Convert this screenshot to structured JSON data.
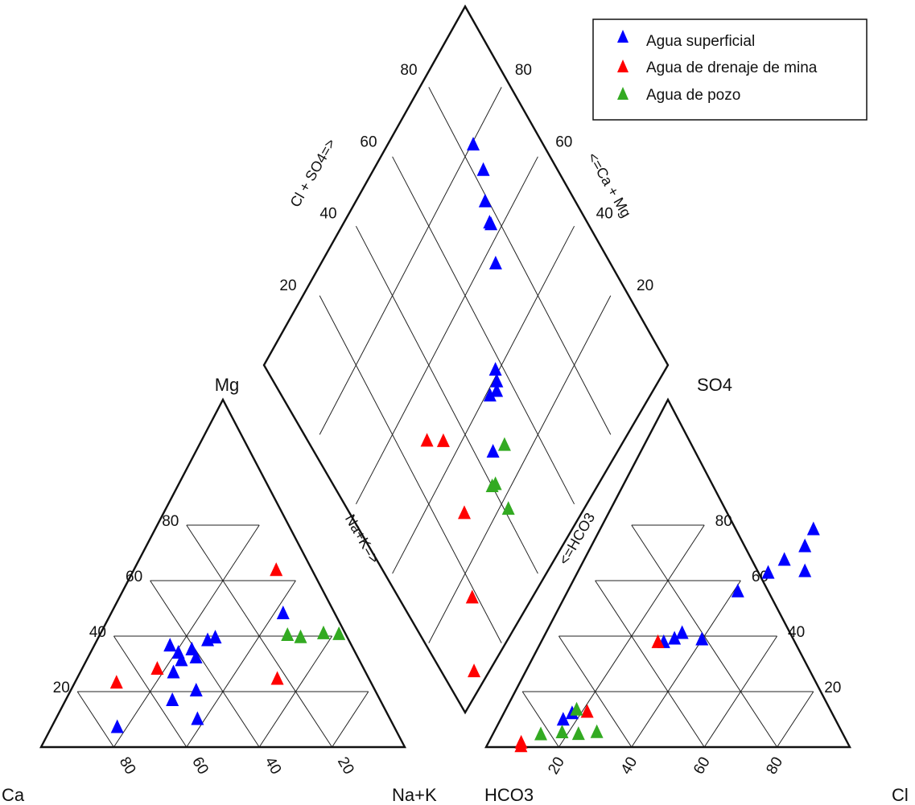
{
  "legend": {
    "items": [
      {
        "label": "Agua superficial",
        "color": "#0000ff"
      },
      {
        "label": "Agua de drenaje de mina",
        "color": "#ff0000"
      },
      {
        "label": "Agua de pozo",
        "color": "#33aa22"
      }
    ]
  },
  "labels": {
    "cation_apex_top": "Mg",
    "cation_left": "Ca",
    "cation_right": "Na+K",
    "cation_axis": "Na+K=>",
    "anion_apex_top": "SO4",
    "anion_left": "HCO3",
    "anion_right": "Cl",
    "anion_axis": "<=HCO3",
    "diamond_left_axis": "Cl + SO4=>",
    "diamond_right_axis": "<=Ca + Mg"
  },
  "ticks": {
    "cation_mg": [
      "20",
      "40",
      "60",
      "80"
    ],
    "cation_bottom": [
      "80",
      "60",
      "40",
      "20"
    ],
    "anion_so4": [
      "80",
      "60",
      "40",
      "20"
    ],
    "anion_bottom": [
      "20",
      "40",
      "60",
      "80"
    ],
    "diamond_left": [
      "80",
      "60",
      "40",
      "20"
    ],
    "diamond_right": [
      "80",
      "60",
      "40",
      "20"
    ]
  },
  "chart_data": {
    "type": "scatter",
    "series": [
      {
        "name": "Agua superficial",
        "cation_points": [
          [
            17.4,
            7.1
          ],
          [
            38.0,
            10.0
          ],
          [
            27.7,
            16.8
          ],
          [
            32.5,
            20.3
          ],
          [
            23.0,
            26.8
          ],
          [
            23.0,
            31.2
          ],
          [
            20.8,
            33.9
          ],
          [
            26.5,
            32.2
          ],
          [
            23.9,
            35.1
          ],
          [
            17.2,
            36.5
          ],
          [
            26.6,
            38.4
          ],
          [
            28.2,
            39.4
          ],
          [
            42.5,
            48.1
          ]
        ],
        "anion_points": [
          [
            16.3,
            9.8
          ],
          [
            17.6,
            12.1
          ],
          [
            30.0,
            37.7
          ],
          [
            32.3,
            39.0
          ],
          [
            33.4,
            41.0
          ],
          [
            40.0,
            38.7
          ],
          [
            41.2,
            56.0
          ],
          [
            46.2,
            62.7
          ],
          [
            48.3,
            67.4
          ],
          [
            56.0,
            63.3
          ],
          [
            51.5,
            72.3
          ],
          [
            50.8,
            78.4
          ]
        ],
        "diamond_points": [
          [
            30.0,
            43.8
          ],
          [
            37.7,
            53.3
          ],
          [
            39.0,
            54.7
          ],
          [
            41.0,
            56.0
          ],
          [
            38.7,
            51.0
          ],
          [
            56.0,
            71.1
          ],
          [
            62.7,
            75.5
          ],
          [
            67.4,
            77.3
          ],
          [
            63.3,
            75.4
          ],
          [
            72.3,
            81.3
          ],
          [
            78.4,
            82.4
          ]
        ]
      },
      {
        "name": "Agua de drenaje de mina",
        "cation_points": [
          [
            9.2,
            23.1
          ],
          [
            17.9,
            28.1
          ],
          [
            52.7,
            24.5
          ],
          [
            32.8,
            63.7
          ]
        ],
        "anion_points": [
          [
            8.9,
            1.5
          ],
          [
            9.5,
            0.2
          ],
          [
            28.4,
            37.7
          ],
          [
            21.5,
            12.6
          ]
        ],
        "diamond_points": [
          [
            14.5,
            18.0
          ],
          [
            28.4,
            28.0
          ],
          [
            43.8,
            33.0
          ],
          [
            47.9,
            29.0
          ],
          [
            3.6,
            8.0
          ]
        ]
      },
      {
        "name": "Agua de pozo",
        "cation_points": [
          [
            51.6,
            39.5
          ],
          [
            47.6,
            40.3
          ],
          [
            57.2,
            40.9
          ],
          [
            61.6,
            40.6
          ]
        ],
        "anion_points": [
          [
            12.8,
            4.5
          ],
          [
            18.2,
            13.4
          ],
          [
            18.3,
            5.2
          ],
          [
            23.1,
            4.6
          ],
          [
            27.8,
            5.3
          ]
        ],
        "diamond_points": [
          [
            18.1,
            39.5
          ],
          [
            28.1,
            47.6
          ],
          [
            24.8,
            39.8
          ],
          [
            25.3,
            38.7
          ]
        ]
      }
    ]
  }
}
